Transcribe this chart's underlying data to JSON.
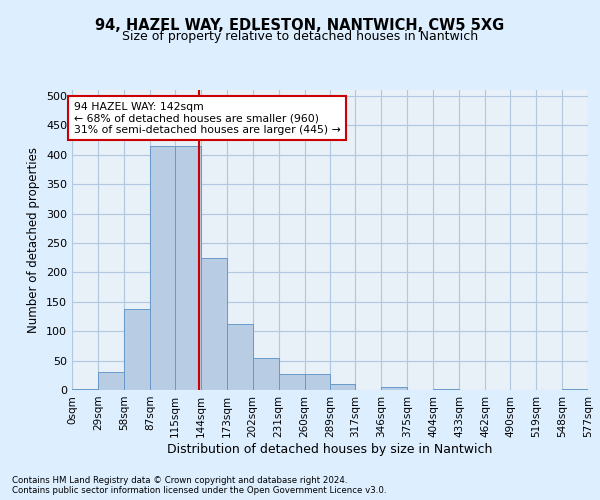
{
  "title": "94, HAZEL WAY, EDLESTON, NANTWICH, CW5 5XG",
  "subtitle": "Size of property relative to detached houses in Nantwich",
  "xlabel": "Distribution of detached houses by size in Nantwich",
  "ylabel": "Number of detached properties",
  "footer1": "Contains HM Land Registry data © Crown copyright and database right 2024.",
  "footer2": "Contains public sector information licensed under the Open Government Licence v3.0.",
  "bin_edges": [
    0,
    29,
    58,
    87,
    115,
    144,
    173,
    202,
    231,
    260,
    289,
    317,
    346,
    375,
    404,
    433,
    462,
    490,
    519,
    548,
    577
  ],
  "bar_heights": [
    2,
    30,
    138,
    415,
    415,
    224,
    113,
    55,
    28,
    28,
    10,
    0,
    5,
    0,
    2,
    0,
    0,
    0,
    0,
    2
  ],
  "bar_color": "#b8cce4",
  "bar_edge_color": "#6699cc",
  "property_size": 142,
  "vline_color": "#cc0000",
  "annotation_text": "94 HAZEL WAY: 142sqm\n← 68% of detached houses are smaller (960)\n31% of semi-detached houses are larger (445) →",
  "annotation_box_color": "#ffffff",
  "annotation_box_edge_color": "#cc0000",
  "ylim": [
    0,
    510
  ],
  "grid_color": "#b0c8e0",
  "background_color": "#ddeeff",
  "plot_bg_color": "#e8f0f8",
  "tick_label_fontsize": 7.5,
  "ytick_label_fontsize": 8.0,
  "title_fontsize": 10.5,
  "subtitle_fontsize": 9.0,
  "ylabel_fontsize": 8.5,
  "xlabel_fontsize": 9.0,
  "footer_fontsize": 6.2,
  "annot_fontsize": 7.8
}
